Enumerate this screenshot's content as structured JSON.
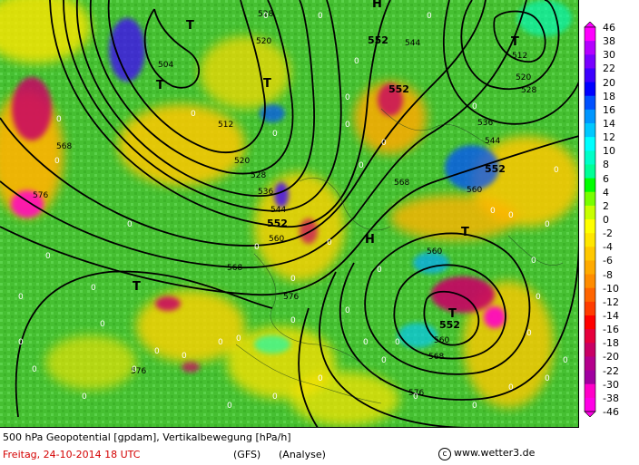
{
  "footer": {
    "line1": "500 hPa Geopotential [gpdam], Vertikalbewegung [hPa/h]",
    "date": "Freitag, 24-10-2014  18 UTC",
    "model": "(GFS)",
    "analysis": "(Analyse)",
    "copyright": "www.wetter3.de"
  },
  "legend": {
    "levels": [
      "46",
      "38",
      "30",
      "22",
      "20",
      "18",
      "16",
      "14",
      "12",
      "10",
      "8",
      "6",
      "4",
      "2",
      "0",
      "-2",
      "-4",
      "-6",
      "-8",
      "-10",
      "-12",
      "-14",
      "-16",
      "-18",
      "-20",
      "-22",
      "-30",
      "-38",
      "-46"
    ],
    "colors": [
      "#ff00ff",
      "#b400ff",
      "#7800ff",
      "#3c00ff",
      "#0000ff",
      "#0050ff",
      "#0096ff",
      "#00c8ff",
      "#00ffff",
      "#00ffc8",
      "#00ff96",
      "#00ff00",
      "#78ff00",
      "#c8ff00",
      "#ffff00",
      "#ffe600",
      "#ffc800",
      "#ffaa00",
      "#ff8c00",
      "#ff6400",
      "#ff3c00",
      "#ff0000",
      "#e6003c",
      "#c80064",
      "#b4008c",
      "#a000a0",
      "#ff00c8",
      "#ff00e6"
    ]
  },
  "isohypse_labels": [
    "504",
    "512",
    "520",
    "528",
    "536",
    "544",
    "552",
    "560",
    "568",
    "576"
  ],
  "centers": [
    {
      "type": "T",
      "label": "T"
    },
    {
      "type": "H",
      "label": "H"
    }
  ],
  "colors": {
    "background_green": "#4fc83c",
    "contour": "#000000",
    "date_red": "#d40000"
  }
}
